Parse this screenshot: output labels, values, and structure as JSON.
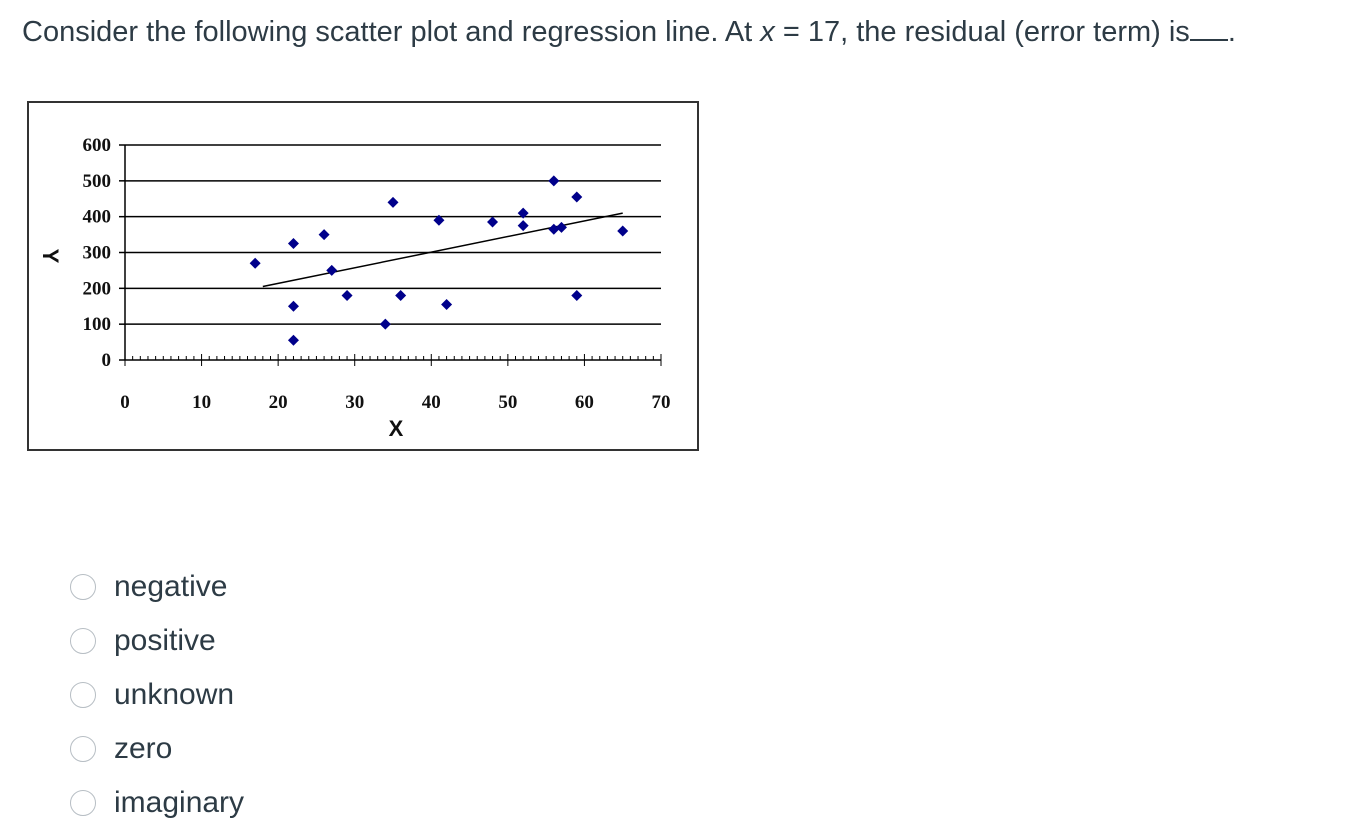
{
  "question": {
    "prefix": "Consider the following scatter plot and regression line. At ",
    "variable": "x",
    "suffix": " = 17, the residual (error term) is",
    "period": "."
  },
  "chart_data": {
    "type": "scatter",
    "xlabel": "X",
    "ylabel": "Y",
    "xlim": [
      0,
      70
    ],
    "ylim": [
      0,
      600
    ],
    "xticks": [
      "0",
      "10",
      "20",
      "30",
      "40",
      "50",
      "60",
      "70"
    ],
    "yticks": [
      "0",
      "100",
      "200",
      "300",
      "400",
      "500",
      "600"
    ],
    "grid": "horizontal",
    "point_color": "#00008b",
    "points": [
      {
        "x": 17,
        "y": 270
      },
      {
        "x": 22,
        "y": 325
      },
      {
        "x": 22,
        "y": 150
      },
      {
        "x": 22,
        "y": 55
      },
      {
        "x": 26,
        "y": 350
      },
      {
        "x": 27,
        "y": 250
      },
      {
        "x": 29,
        "y": 180
      },
      {
        "x": 34,
        "y": 100
      },
      {
        "x": 35,
        "y": 440
      },
      {
        "x": 36,
        "y": 180
      },
      {
        "x": 41,
        "y": 390
      },
      {
        "x": 42,
        "y": 155
      },
      {
        "x": 48,
        "y": 385
      },
      {
        "x": 52,
        "y": 410
      },
      {
        "x": 52,
        "y": 375
      },
      {
        "x": 56,
        "y": 500
      },
      {
        "x": 56,
        "y": 365
      },
      {
        "x": 57,
        "y": 370
      },
      {
        "x": 59,
        "y": 455
      },
      {
        "x": 59,
        "y": 180
      },
      {
        "x": 65,
        "y": 360
      }
    ],
    "regression_line": {
      "x": [
        18,
        65
      ],
      "y": [
        205,
        410
      ]
    }
  },
  "options": [
    {
      "label": "negative"
    },
    {
      "label": "positive"
    },
    {
      "label": "unknown"
    },
    {
      "label": "zero"
    },
    {
      "label": "imaginary"
    }
  ]
}
